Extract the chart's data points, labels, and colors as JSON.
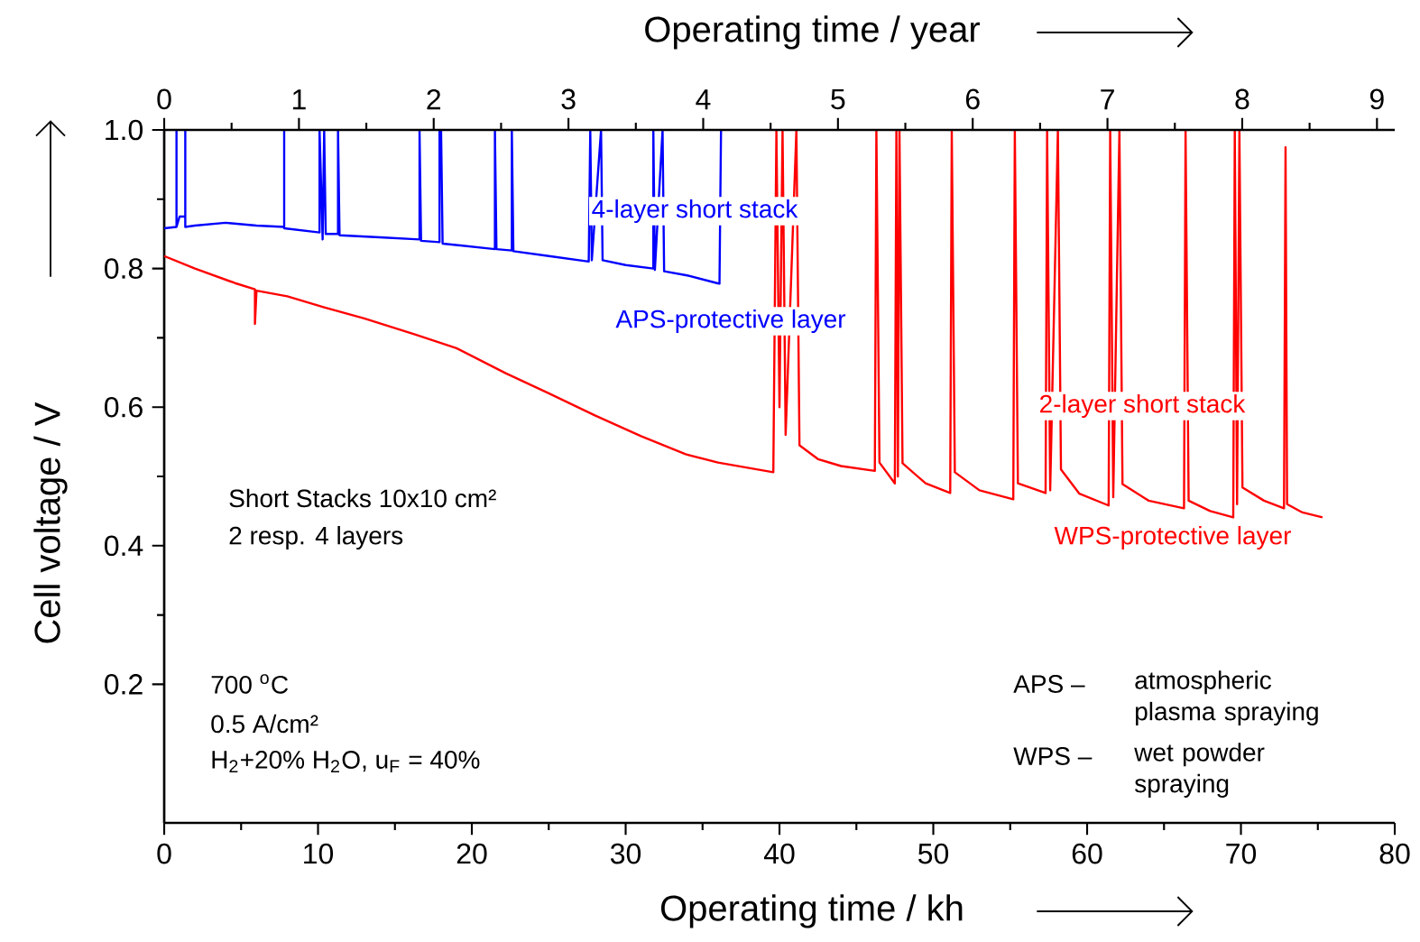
{
  "chart_data": {
    "type": "line",
    "xlabel": "Operating time / kh",
    "x2label": "Operating time / year",
    "ylabel": "Cell voltage / V",
    "xlim": [
      0,
      80
    ],
    "xticks": [
      0,
      10,
      20,
      30,
      40,
      50,
      60,
      70,
      80
    ],
    "x2lim": [
      0,
      9.132
    ],
    "x2ticks": [
      0,
      1,
      2,
      3,
      4,
      5,
      6,
      7,
      8,
      9
    ],
    "ylim": [
      0,
      1
    ],
    "yticks": [
      0.2,
      0.4,
      0.6,
      0.8,
      {
        "value": 1.0,
        "label": "1.0"
      }
    ],
    "legend": false,
    "grid": false,
    "marker": "none",
    "line_style": "solid",
    "series": [
      {
        "name": "4-layer short stack",
        "color": "#0000ff",
        "x": [
          0,
          0.8,
          0.8,
          0.8,
          1.0,
          1.37,
          1.37,
          1.37,
          2,
          4,
          6,
          7.8,
          7.8,
          7.8,
          10.1,
          10.1,
          10.3,
          10.4,
          10.5,
          11.3,
          11.3,
          11.4,
          14,
          16.6,
          16.6,
          16.7,
          17.9,
          17.9,
          18.0,
          18.1,
          21.5,
          21.5,
          21.6,
          22.6,
          22.6,
          22.7,
          25,
          27.6,
          27.7,
          27.8,
          28.4,
          28.5,
          30,
          31.8,
          31.8,
          31.9,
          32.4,
          32.5,
          34,
          36.1,
          36.2
        ],
        "values": [
          0.858,
          0.86,
          1.0,
          0.86,
          0.875,
          0.875,
          1.0,
          0.86,
          0.862,
          0.866,
          0.862,
          0.86,
          1.0,
          0.858,
          0.852,
          1.0,
          0.842,
          1.0,
          0.85,
          0.85,
          1.0,
          0.848,
          0.845,
          0.842,
          1.0,
          0.84,
          0.838,
          1.0,
          1.0,
          0.836,
          0.828,
          1.0,
          0.828,
          0.826,
          1.0,
          0.825,
          0.818,
          0.81,
          1.0,
          0.812,
          1.0,
          0.812,
          0.805,
          0.8,
          1.0,
          0.798,
          1.0,
          0.796,
          0.79,
          0.778,
          1.0
        ]
      },
      {
        "name": "2-layer short stack",
        "color": "#ff0000",
        "x": [
          0,
          2,
          4.6,
          5.9,
          5.9,
          6.0,
          8,
          10.4,
          13,
          16.3,
          19,
          22.2,
          25,
          28,
          31,
          33.9,
          36,
          39.6,
          39.8,
          40.0,
          40.2,
          40.4,
          41.1,
          41.3,
          42.5,
          44,
          46.2,
          46.3,
          46.5,
          47.5,
          47.6,
          47.7,
          47.8,
          48.0,
          49.5,
          51.1,
          51.2,
          51.4,
          53,
          55.2,
          55.3,
          55.5,
          57.3,
          57.4,
          57.6,
          58.1,
          58.3,
          59.5,
          61.4,
          61.5,
          61.7,
          62.1,
          62.3,
          64,
          66.3,
          66.4,
          66.6,
          68,
          69.5,
          69.6,
          69.75,
          69.9,
          70.1,
          71.5,
          72.8,
          72.9,
          73.0,
          74,
          75.3
        ],
        "values": [
          0.818,
          0.8,
          0.779,
          0.77,
          0.72,
          0.768,
          0.76,
          0.744,
          0.728,
          0.705,
          0.685,
          0.649,
          0.62,
          0.588,
          0.558,
          0.532,
          0.52,
          0.506,
          1.0,
          0.6,
          1.0,
          0.56,
          1.0,
          0.545,
          0.525,
          0.515,
          0.508,
          1.0,
          0.52,
          0.49,
          1.0,
          0.5,
          1.0,
          0.519,
          0.49,
          0.476,
          1.0,
          0.506,
          0.48,
          0.467,
          1.0,
          0.49,
          0.476,
          1.0,
          0.48,
          1.0,
          0.51,
          0.475,
          0.458,
          1.0,
          0.47,
          1.0,
          0.489,
          0.465,
          0.454,
          1.0,
          0.465,
          0.45,
          0.441,
          1.0,
          0.46,
          1.0,
          0.484,
          0.465,
          0.454,
          0.975,
          0.46,
          0.448,
          0.441
        ]
      }
    ],
    "annotations": [
      "APS-protective layer",
      "WPS-protective layer",
      "Short Stacks 10x10 cm²",
      "2 resp. 4 layers",
      "700 $^{o}$C",
      "0.5 A/cm²",
      "H$_{2}$+20% H$_{2}$O, u$_{F}$ = 40%",
      "APS –",
      "atmospheric plasma spraying",
      "WPS –",
      "wet powder spraying"
    ]
  }
}
